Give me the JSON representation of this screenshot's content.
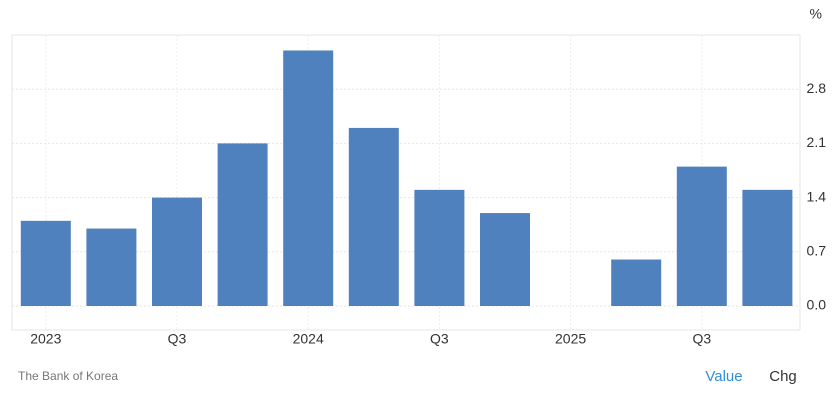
{
  "chart_data": {
    "type": "bar",
    "unit": "%",
    "source": "The Bank of Korea",
    "buttons": [
      "Value",
      "Chg"
    ],
    "categories": [
      "2023",
      null,
      "Q3",
      null,
      "2024",
      null,
      "Q3",
      null,
      "2025",
      null,
      "Q3",
      null
    ],
    "values": [
      1.1,
      1.0,
      1.4,
      2.1,
      3.3,
      2.3,
      1.5,
      1.2,
      0.0,
      0.6,
      1.8,
      1.5
    ],
    "color": "#4e81bd",
    "ylim": [
      -0.31,
      3.5
    ],
    "yticks": [
      0.0,
      0.7,
      1.4,
      2.1,
      2.8
    ],
    "grid": true
  }
}
